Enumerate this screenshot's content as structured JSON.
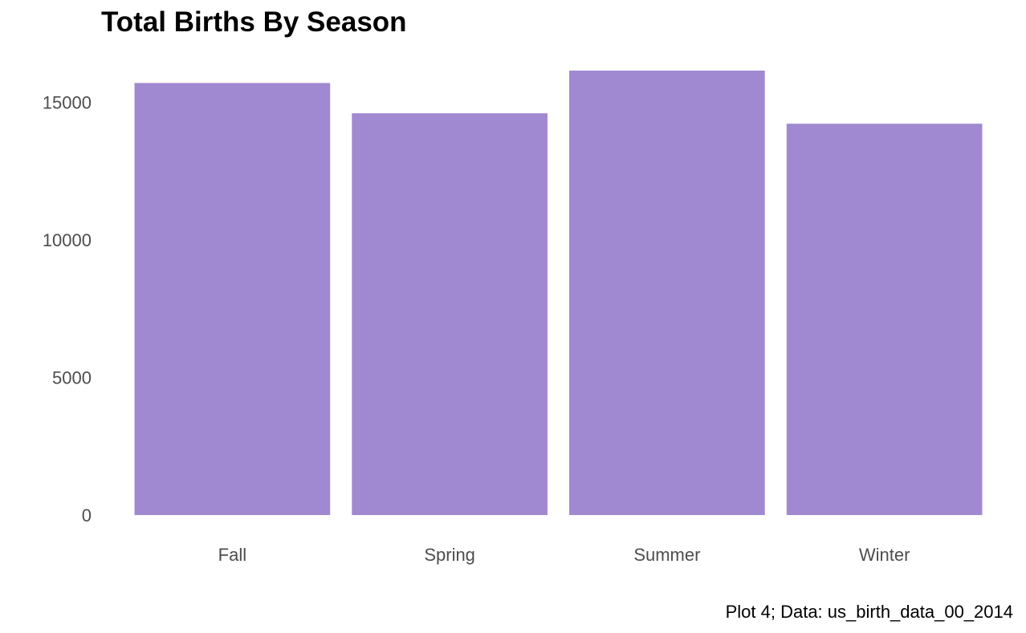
{
  "chart_data": {
    "type": "bar",
    "title": "Total Births By Season",
    "caption": "Plot 4; Data: us_birth_data_00_2014",
    "xlabel": "",
    "ylabel": "",
    "categories": [
      "Fall",
      "Spring",
      "Summer",
      "Winter"
    ],
    "values": [
      15700,
      14600,
      16150,
      14220
    ],
    "ylim": [
      0,
      16150
    ],
    "yticks": [
      0,
      5000,
      10000,
      15000
    ],
    "ytick_labels": [
      "0",
      "5000",
      "10000",
      "15000"
    ],
    "grid": false,
    "legend": "none",
    "bar_color": "#A189D1"
  }
}
